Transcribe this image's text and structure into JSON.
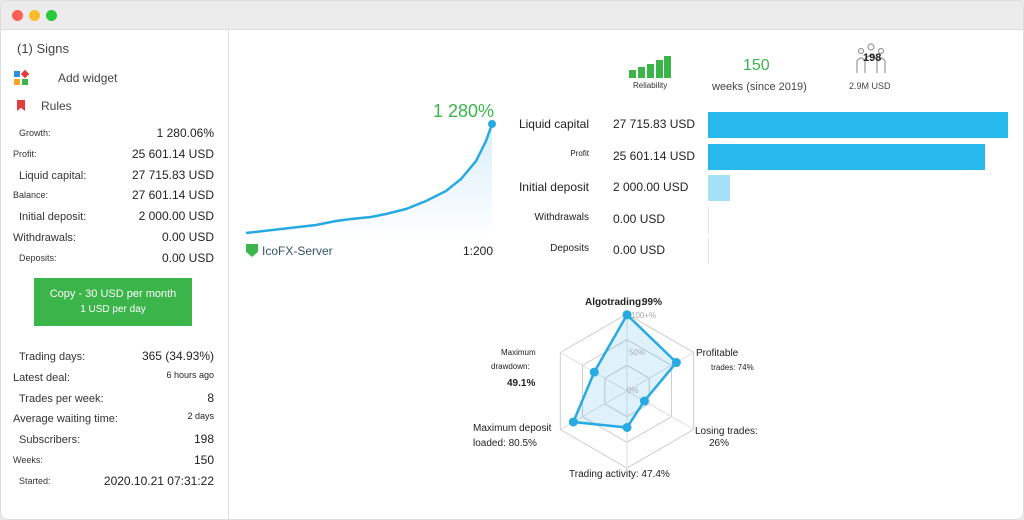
{
  "window": {
    "controls": [
      "close",
      "minimize",
      "maximize"
    ]
  },
  "sidebar": {
    "signals": "(1) Signs",
    "add_widget": "Add widget",
    "rules": "Rules",
    "stats": [
      {
        "label": "Growth:",
        "value": "1 280.06%"
      },
      {
        "label": "Profit:",
        "value": "25 601.14 USD"
      },
      {
        "label": "Liquid capital:",
        "value": "27 715.83 USD"
      },
      {
        "label": "Balance:",
        "value": "27 601.14 USD"
      },
      {
        "label": "Initial deposit:",
        "value": "2 000.00 USD"
      },
      {
        "label": "Withdrawals:",
        "value": "0.00 USD"
      },
      {
        "label": "Deposits:",
        "value": "0.00 USD"
      }
    ],
    "copy_button": {
      "line1": "Copy - 30 USD per month",
      "line2": "1 USD per day"
    },
    "stats2": [
      {
        "label": "Trading days:",
        "value": "365 (34.93%)"
      },
      {
        "label": "Latest deal:",
        "value": "6 hours ago"
      },
      {
        "label": "Trades per week:",
        "value": "8"
      },
      {
        "label": "Average waiting time:",
        "value": "2 days"
      },
      {
        "label": "Subscribers:",
        "value": "198"
      },
      {
        "label": "Weeks:",
        "value": "150"
      },
      {
        "label": "Started:",
        "value": "2020.10.21 07:31:22"
      }
    ]
  },
  "growth": {
    "value": "1 280%",
    "server": "IcoFX-Server",
    "leverage": "1:200",
    "color": "#27a9e1"
  },
  "header": {
    "reliability": "Reliability",
    "reliability_level": 5,
    "weeks": "150",
    "weeks_label": "weeks (since 2019)",
    "subscribers": "198",
    "funds": "2.9M USD"
  },
  "balance_bars": [
    {
      "label": "Liquid capital",
      "value": "27 715.83 USD",
      "amount": 27715.83
    },
    {
      "label": "Profit",
      "value": "25 601.14 USD",
      "amount": 25601.14
    },
    {
      "label": "Initial deposit",
      "value": "2 000.00 USD",
      "amount": 2000
    },
    {
      "label": "Withdrawals",
      "value": "0.00 USD",
      "amount": 0
    },
    {
      "label": "Deposits",
      "value": "0.00 USD",
      "amount": 0
    }
  ],
  "radar": {
    "ticks": [
      "100+%",
      "50%",
      "0%"
    ],
    "axes": [
      {
        "label1": "Algotrading:",
        "label2": "99%",
        "value": 99
      },
      {
        "label1": "Profitable",
        "label2": "trades: 74%",
        "value": 74
      },
      {
        "label1": "Losing trades:",
        "label2": "26%",
        "value": 26
      },
      {
        "label1": "Trading activity: 47.4%",
        "label2": "",
        "value": 47.4
      },
      {
        "label1": "Maximum deposit",
        "label2": "loaded: 80.5%",
        "value": 80.5
      },
      {
        "label1": "Maximum",
        "label2": "drawdown:",
        "label3": "49.1%",
        "value": 49.1
      }
    ]
  }
}
